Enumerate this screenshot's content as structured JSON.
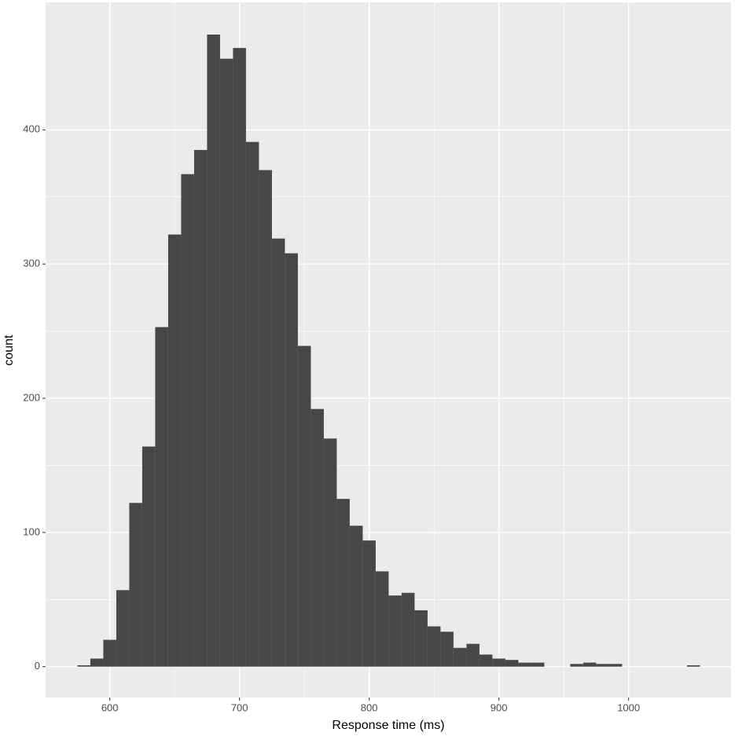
{
  "chart_data": {
    "type": "histogram",
    "x_label": "Response time (ms)",
    "y_label": "count",
    "bins": [
      575,
      585,
      595,
      605,
      615,
      625,
      635,
      645,
      655,
      665,
      675,
      685,
      695,
      705,
      715,
      725,
      735,
      745,
      755,
      765,
      775,
      785,
      795,
      805,
      815,
      825,
      835,
      845,
      855,
      865,
      875,
      885,
      895,
      905,
      915,
      925,
      935,
      945,
      955,
      965,
      975,
      985,
      995,
      1005,
      1015,
      1025,
      1035,
      1045,
      1055
    ],
    "counts": [
      1,
      6,
      20,
      57,
      122,
      164,
      253,
      322,
      367,
      385,
      471,
      453,
      461,
      391,
      370,
      319,
      308,
      239,
      192,
      170,
      125,
      105,
      94,
      71,
      53,
      55,
      42,
      30,
      26,
      14,
      17,
      9,
      6,
      5,
      3,
      3,
      0,
      0,
      2,
      3,
      2,
      2,
      0,
      0,
      0,
      0,
      0,
      1
    ],
    "color": "#474747",
    "xlim": [
      550.5,
      1079
    ],
    "xticks": [
      600,
      700,
      800,
      900,
      1000
    ],
    "ylim": [
      -23,
      495
    ],
    "yticks": [
      0,
      100,
      200,
      300,
      400
    ],
    "grid": true
  }
}
